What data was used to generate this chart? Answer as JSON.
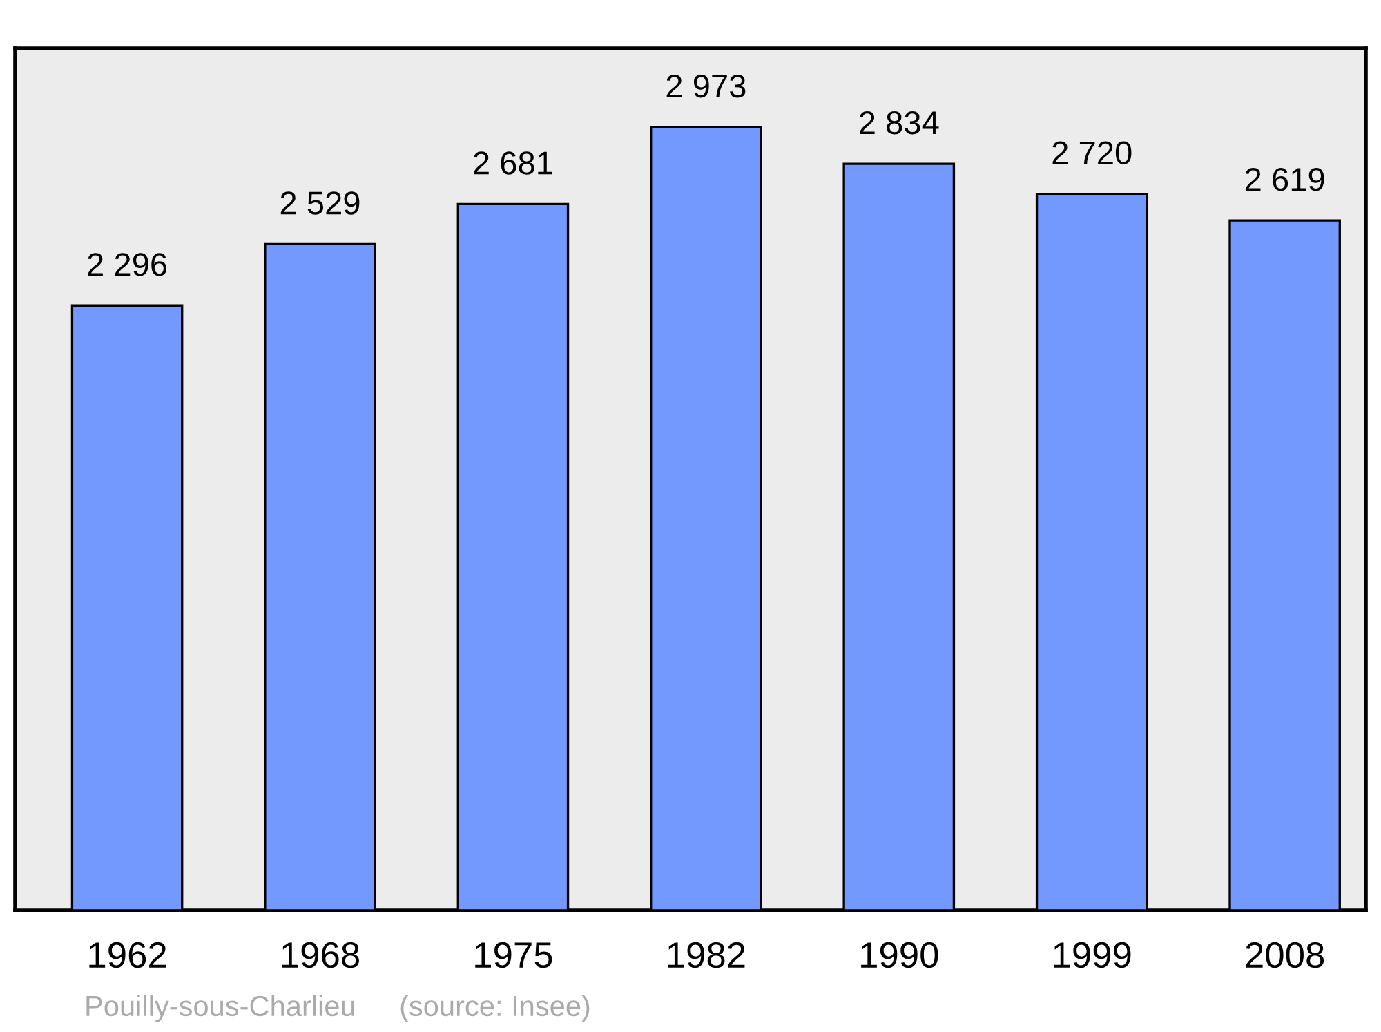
{
  "chart_data": {
    "type": "bar",
    "categories": [
      "1962",
      "1968",
      "1975",
      "1982",
      "1990",
      "1999",
      "2008"
    ],
    "values": [
      2296,
      2529,
      2681,
      2973,
      2834,
      2720,
      2619
    ],
    "value_labels": [
      "2 296",
      "2 529",
      "2 681",
      "2 973",
      "2 834",
      "2 720",
      "2 619"
    ],
    "color": "#7399ff",
    "ylim": [
      0,
      3272
    ],
    "tick_labels": "x",
    "grid": false,
    "legend": false,
    "annotations": [
      "Pouilly-sous-Charlieu",
      "(source: Insee)"
    ]
  }
}
